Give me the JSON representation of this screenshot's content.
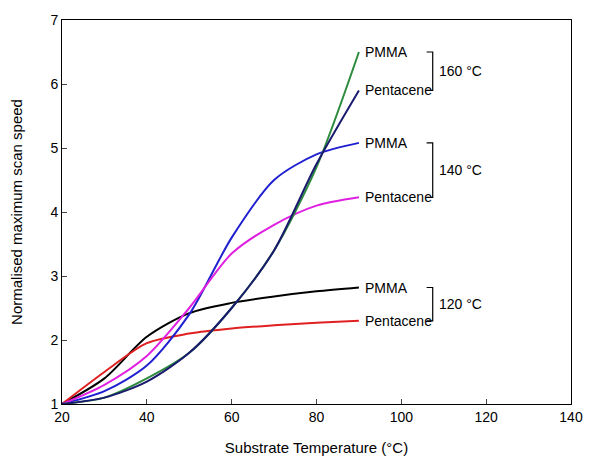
{
  "chart_data": {
    "type": "line",
    "x_label": "Substrate Temperature (°C)",
    "y_label": "Normalised maximum scan speed",
    "x": [
      20,
      30,
      40,
      50,
      60,
      70,
      80,
      90
    ],
    "series": [
      {
        "name": "PMMA",
        "group": "120 °C",
        "color": "#000000",
        "values": [
          1,
          1.4,
          2.05,
          2.42,
          2.58,
          2.68,
          2.76,
          2.82
        ]
      },
      {
        "name": "Pentacene",
        "group": "120 °C",
        "color": "#e02020",
        "values": [
          1,
          1.5,
          1.95,
          2.1,
          2.18,
          2.23,
          2.27,
          2.3
        ]
      },
      {
        "name": "PMMA",
        "group": "140 °C",
        "color": "#2020d0",
        "values": [
          1,
          1.2,
          1.6,
          2.4,
          3.6,
          4.5,
          4.9,
          5.08
        ]
      },
      {
        "name": "Pentacene",
        "group": "140 °C",
        "color": "#e020e0",
        "values": [
          1,
          1.3,
          1.75,
          2.5,
          3.35,
          3.8,
          4.1,
          4.23
        ]
      },
      {
        "name": "PMMA",
        "group": "160 °C",
        "color": "#2e8b3e",
        "values": [
          1,
          1.1,
          1.4,
          1.8,
          2.5,
          3.4,
          4.7,
          6.5
        ]
      },
      {
        "name": "Pentacene",
        "group": "160 °C",
        "color": "#1a1a6e",
        "values": [
          1,
          1.1,
          1.35,
          1.8,
          2.5,
          3.4,
          4.75,
          5.9
        ]
      }
    ],
    "xlim": [
      20,
      140
    ],
    "xticks": [
      20,
      40,
      60,
      80,
      100,
      120,
      140
    ],
    "ylim": [
      1,
      7
    ],
    "yticks": [
      1,
      2,
      3,
      4,
      5,
      6,
      7
    ],
    "grid": false,
    "line_style": "solid"
  }
}
